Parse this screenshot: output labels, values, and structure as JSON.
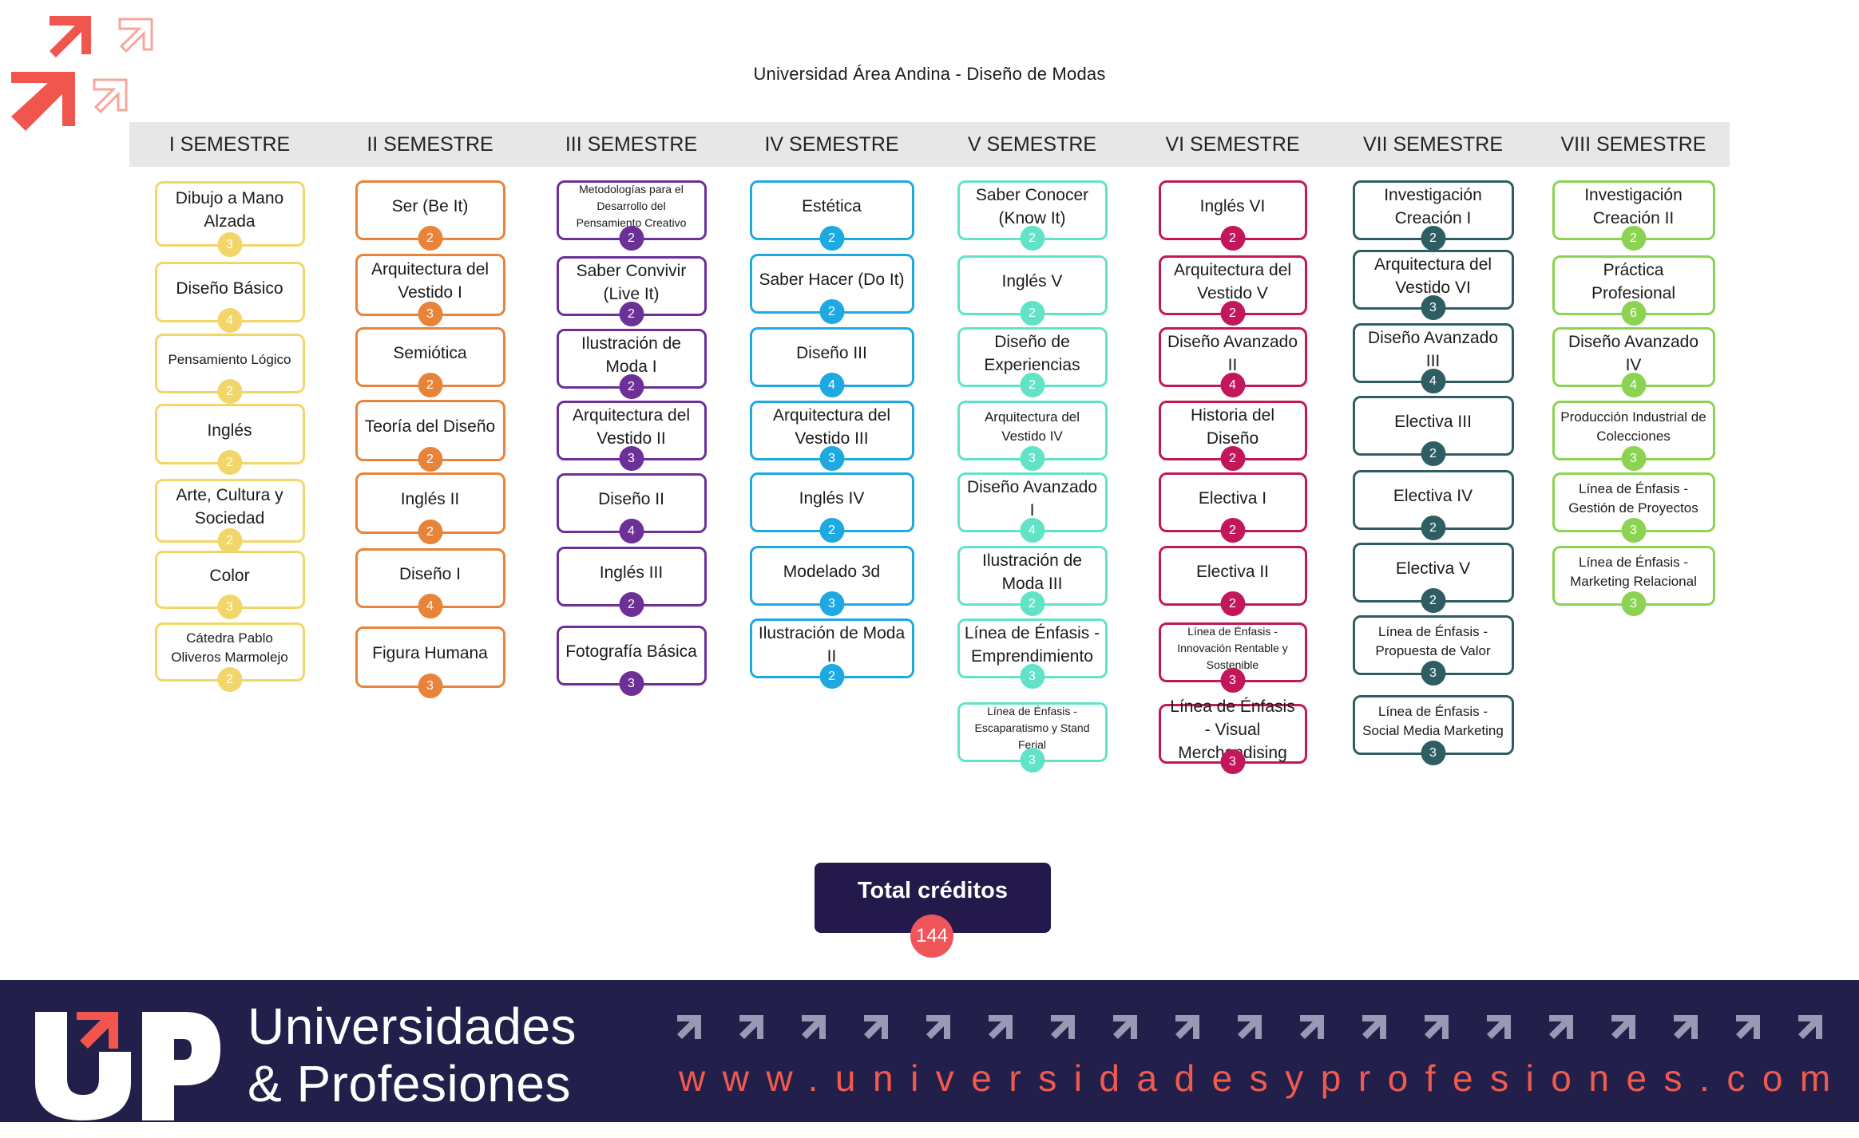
{
  "page": {
    "title": "Universidad Área Andina - Diseño de Modas"
  },
  "semesters": [
    {
      "label": "I SEMESTRE",
      "color": "#f3d66a",
      "courses": [
        {
          "name": "Dibujo a Mano Alzada",
          "credits": "3"
        },
        {
          "name": "Diseño Básico",
          "credits": "4"
        },
        {
          "name": "Pensamiento Lógico",
          "credits": "2"
        },
        {
          "name": "Inglés",
          "credits": "2"
        },
        {
          "name": "Arte, Cultura y Sociedad",
          "credits": "2"
        },
        {
          "name": "Color",
          "credits": "3"
        },
        {
          "name": "Cátedra Pablo Oliveros Marmolejo",
          "credits": "2"
        }
      ]
    },
    {
      "label": "II SEMESTRE",
      "color": "#e8833a",
      "courses": [
        {
          "name": "Ser (Be It)",
          "credits": "2"
        },
        {
          "name": "Arquitectura del Vestido I",
          "credits": "3"
        },
        {
          "name": "Semiótica",
          "credits": "2"
        },
        {
          "name": "Teoría del Diseño",
          "credits": "2"
        },
        {
          "name": "Inglés II",
          "credits": "2"
        },
        {
          "name": "Diseño I",
          "credits": "4"
        },
        {
          "name": "Figura Humana",
          "credits": "3"
        }
      ]
    },
    {
      "label": "III SEMESTRE",
      "color": "#6d3096",
      "courses": [
        {
          "name": "Metodologías para el Desarrollo del Pensamiento Creativo",
          "credits": "2"
        },
        {
          "name": "Saber Convivir (Live It)",
          "credits": "2"
        },
        {
          "name": "Ilustración de Moda I",
          "credits": "2"
        },
        {
          "name": "Arquitectura del Vestido II",
          "credits": "3"
        },
        {
          "name": "Diseño II",
          "credits": "4"
        },
        {
          "name": "Inglés III",
          "credits": "2"
        },
        {
          "name": "Fotografía Básica",
          "credits": "3"
        }
      ]
    },
    {
      "label": "IV SEMESTRE",
      "color": "#1fa9e1",
      "courses": [
        {
          "name": "Estética",
          "credits": "2"
        },
        {
          "name": "Saber Hacer (Do It)",
          "credits": "2"
        },
        {
          "name": "Diseño III",
          "credits": "4"
        },
        {
          "name": "Arquitectura del Vestido III",
          "credits": "3"
        },
        {
          "name": "Inglés IV",
          "credits": "2"
        },
        {
          "name": "Modelado 3d",
          "credits": "3"
        },
        {
          "name": "Ilustración de Moda II",
          "credits": "2"
        }
      ]
    },
    {
      "label": "V SEMESTRE",
      "color": "#62e3c8",
      "courses": [
        {
          "name": "Saber Conocer (Know It)",
          "credits": "2"
        },
        {
          "name": "Inglés V",
          "credits": "2"
        },
        {
          "name": "Diseño de Experiencias",
          "credits": "2"
        },
        {
          "name": "Arquitectura del Vestido IV",
          "credits": "3"
        },
        {
          "name": "Diseño Avanzado I",
          "credits": "4"
        },
        {
          "name": "Ilustración de Moda III",
          "credits": "2"
        },
        {
          "name": "Línea de Énfasis - Emprendimiento",
          "credits": "3"
        },
        {
          "name": "Línea de Énfasis - Escaparatismo y Stand Ferial",
          "credits": "3"
        }
      ]
    },
    {
      "label": "VI SEMESTRE",
      "color": "#c2185b",
      "courses": [
        {
          "name": "Inglés VI",
          "credits": "2"
        },
        {
          "name": "Arquitectura del Vestido V",
          "credits": "2"
        },
        {
          "name": "Diseño Avanzado II",
          "credits": "4"
        },
        {
          "name": "Historia del Diseño",
          "credits": "2"
        },
        {
          "name": "Electiva I",
          "credits": "2"
        },
        {
          "name": "Electiva II",
          "credits": "2"
        },
        {
          "name": "Línea de Énfasis - Innovación Rentable y Sostenible",
          "credits": "3"
        },
        {
          "name": "Línea de Énfasis - Visual Merchandising",
          "credits": "3"
        }
      ]
    },
    {
      "label": "VII SEMESTRE",
      "color": "#2e5e63",
      "courses": [
        {
          "name": "Investigación Creación I",
          "credits": "2"
        },
        {
          "name": "Arquitectura del Vestido VI",
          "credits": "3"
        },
        {
          "name": "Diseño Avanzado III",
          "credits": "4"
        },
        {
          "name": "Electiva III",
          "credits": "2"
        },
        {
          "name": "Electiva IV",
          "credits": "2"
        },
        {
          "name": "Electiva V",
          "credits": "2"
        },
        {
          "name": "Línea de Énfasis - Propuesta de Valor",
          "credits": "3"
        },
        {
          "name": "Línea de Énfasis - Social Media Marketing",
          "credits": "3"
        }
      ]
    },
    {
      "label": "VIII SEMESTRE",
      "color": "#8dd353",
      "courses": [
        {
          "name": "Investigación Creación II",
          "credits": "2"
        },
        {
          "name": "Práctica Profesional",
          "credits": "6"
        },
        {
          "name": "Diseño Avanzado IV",
          "credits": "4"
        },
        {
          "name": "Producción Industrial de Colecciones",
          "credits": "3"
        },
        {
          "name": "Línea de Énfasis - Gestión de Proyectos",
          "credits": "3"
        },
        {
          "name": "Línea de Énfasis - Marketing Relacional",
          "credits": "3"
        }
      ]
    }
  ],
  "total": {
    "label": "Total créditos",
    "value": "144",
    "box_color": "#23194a",
    "circle_color": "#f0555a"
  },
  "footer": {
    "brand_line1": "Universidades",
    "brand_line2": "& Profesiones",
    "website": "www.universidadesyprofesiones.com",
    "background": "#22204a",
    "accent": "#f05a4f"
  }
}
